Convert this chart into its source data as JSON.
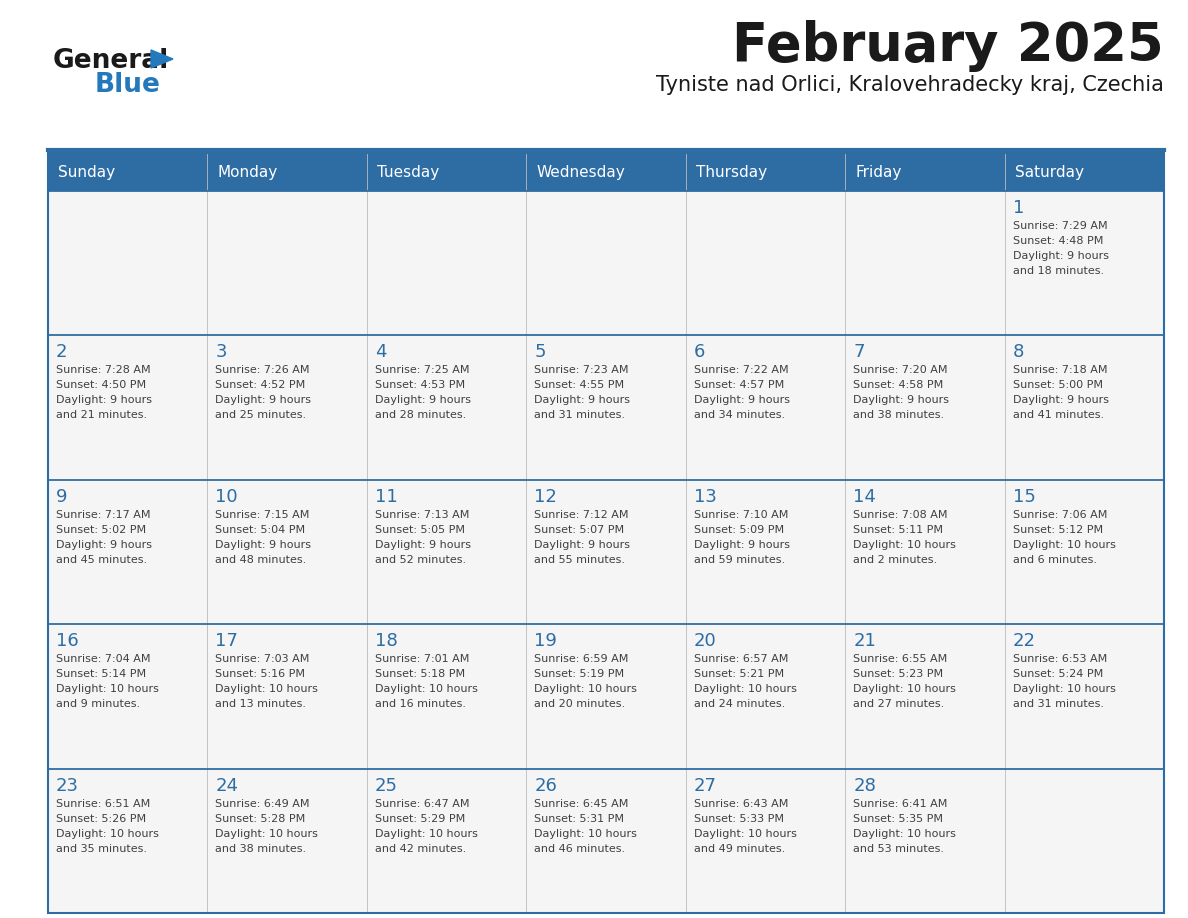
{
  "title": "February 2025",
  "subtitle": "Tyniste nad Orlici, Kralovehradecky kraj, Czechia",
  "days_of_week": [
    "Sunday",
    "Monday",
    "Tuesday",
    "Wednesday",
    "Thursday",
    "Friday",
    "Saturday"
  ],
  "header_bg": "#2E6DA4",
  "header_text": "#FFFFFF",
  "cell_bg": "#F5F5F5",
  "line_color": "#2E6DA4",
  "text_color": "#404040",
  "day_num_color": "#2E6DA4",
  "logo_general_color": "#1a1a1a",
  "logo_blue_color": "#2479BD",
  "calendar_data": [
    [
      {
        "day": null,
        "sunrise": null,
        "sunset": null,
        "daylight": null
      },
      {
        "day": null,
        "sunrise": null,
        "sunset": null,
        "daylight": null
      },
      {
        "day": null,
        "sunrise": null,
        "sunset": null,
        "daylight": null
      },
      {
        "day": null,
        "sunrise": null,
        "sunset": null,
        "daylight": null
      },
      {
        "day": null,
        "sunrise": null,
        "sunset": null,
        "daylight": null
      },
      {
        "day": null,
        "sunrise": null,
        "sunset": null,
        "daylight": null
      },
      {
        "day": 1,
        "sunrise": "7:29 AM",
        "sunset": "4:48 PM",
        "daylight": "9 hours\nand 18 minutes."
      }
    ],
    [
      {
        "day": 2,
        "sunrise": "7:28 AM",
        "sunset": "4:50 PM",
        "daylight": "9 hours\nand 21 minutes."
      },
      {
        "day": 3,
        "sunrise": "7:26 AM",
        "sunset": "4:52 PM",
        "daylight": "9 hours\nand 25 minutes."
      },
      {
        "day": 4,
        "sunrise": "7:25 AM",
        "sunset": "4:53 PM",
        "daylight": "9 hours\nand 28 minutes."
      },
      {
        "day": 5,
        "sunrise": "7:23 AM",
        "sunset": "4:55 PM",
        "daylight": "9 hours\nand 31 minutes."
      },
      {
        "day": 6,
        "sunrise": "7:22 AM",
        "sunset": "4:57 PM",
        "daylight": "9 hours\nand 34 minutes."
      },
      {
        "day": 7,
        "sunrise": "7:20 AM",
        "sunset": "4:58 PM",
        "daylight": "9 hours\nand 38 minutes."
      },
      {
        "day": 8,
        "sunrise": "7:18 AM",
        "sunset": "5:00 PM",
        "daylight": "9 hours\nand 41 minutes."
      }
    ],
    [
      {
        "day": 9,
        "sunrise": "7:17 AM",
        "sunset": "5:02 PM",
        "daylight": "9 hours\nand 45 minutes."
      },
      {
        "day": 10,
        "sunrise": "7:15 AM",
        "sunset": "5:04 PM",
        "daylight": "9 hours\nand 48 minutes."
      },
      {
        "day": 11,
        "sunrise": "7:13 AM",
        "sunset": "5:05 PM",
        "daylight": "9 hours\nand 52 minutes."
      },
      {
        "day": 12,
        "sunrise": "7:12 AM",
        "sunset": "5:07 PM",
        "daylight": "9 hours\nand 55 minutes."
      },
      {
        "day": 13,
        "sunrise": "7:10 AM",
        "sunset": "5:09 PM",
        "daylight": "9 hours\nand 59 minutes."
      },
      {
        "day": 14,
        "sunrise": "7:08 AM",
        "sunset": "5:11 PM",
        "daylight": "10 hours\nand 2 minutes."
      },
      {
        "day": 15,
        "sunrise": "7:06 AM",
        "sunset": "5:12 PM",
        "daylight": "10 hours\nand 6 minutes."
      }
    ],
    [
      {
        "day": 16,
        "sunrise": "7:04 AM",
        "sunset": "5:14 PM",
        "daylight": "10 hours\nand 9 minutes."
      },
      {
        "day": 17,
        "sunrise": "7:03 AM",
        "sunset": "5:16 PM",
        "daylight": "10 hours\nand 13 minutes."
      },
      {
        "day": 18,
        "sunrise": "7:01 AM",
        "sunset": "5:18 PM",
        "daylight": "10 hours\nand 16 minutes."
      },
      {
        "day": 19,
        "sunrise": "6:59 AM",
        "sunset": "5:19 PM",
        "daylight": "10 hours\nand 20 minutes."
      },
      {
        "day": 20,
        "sunrise": "6:57 AM",
        "sunset": "5:21 PM",
        "daylight": "10 hours\nand 24 minutes."
      },
      {
        "day": 21,
        "sunrise": "6:55 AM",
        "sunset": "5:23 PM",
        "daylight": "10 hours\nand 27 minutes."
      },
      {
        "day": 22,
        "sunrise": "6:53 AM",
        "sunset": "5:24 PM",
        "daylight": "10 hours\nand 31 minutes."
      }
    ],
    [
      {
        "day": 23,
        "sunrise": "6:51 AM",
        "sunset": "5:26 PM",
        "daylight": "10 hours\nand 35 minutes."
      },
      {
        "day": 24,
        "sunrise": "6:49 AM",
        "sunset": "5:28 PM",
        "daylight": "10 hours\nand 38 minutes."
      },
      {
        "day": 25,
        "sunrise": "6:47 AM",
        "sunset": "5:29 PM",
        "daylight": "10 hours\nand 42 minutes."
      },
      {
        "day": 26,
        "sunrise": "6:45 AM",
        "sunset": "5:31 PM",
        "daylight": "10 hours\nand 46 minutes."
      },
      {
        "day": 27,
        "sunrise": "6:43 AM",
        "sunset": "5:33 PM",
        "daylight": "10 hours\nand 49 minutes."
      },
      {
        "day": 28,
        "sunrise": "6:41 AM",
        "sunset": "5:35 PM",
        "daylight": "10 hours\nand 53 minutes."
      },
      {
        "day": null,
        "sunrise": null,
        "sunset": null,
        "daylight": null
      }
    ]
  ]
}
